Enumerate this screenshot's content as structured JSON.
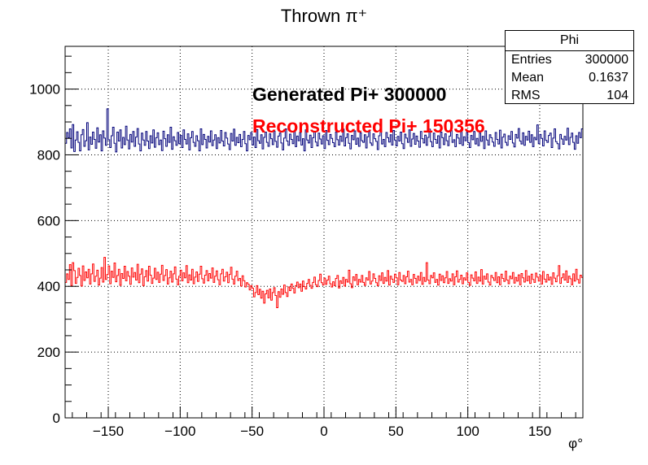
{
  "chart_data": {
    "type": "line",
    "title": "Thrown π⁺",
    "xlabel": "φ°",
    "ylabel": "",
    "xlim": [
      -180,
      180
    ],
    "ylim": [
      0,
      1130
    ],
    "grid": true,
    "x_ticks": [
      -150,
      -100,
      -50,
      0,
      50,
      100,
      150
    ],
    "y_ticks": [
      0,
      200,
      400,
      600,
      800,
      1000
    ],
    "x_tick_labels": [
      "−150",
      "−100",
      "−50",
      "0",
      "50",
      "100",
      "150"
    ],
    "y_tick_labels": [
      "0",
      "200",
      "400",
      "600",
      "800",
      "1000"
    ],
    "bins": 360,
    "series": [
      {
        "color": "#00007a",
        "mean": 833,
        "values_note_free": true,
        "values": [
          835,
          868,
          852,
          879,
          821,
          892,
          810,
          845,
          870,
          838,
          812,
          861,
          877,
          826,
          843,
          898,
          815,
          854,
          832,
          869,
          847,
          820,
          882,
          839,
          861,
          812,
          873,
          851,
          829,
          940,
          846,
          822,
          858,
          884,
          835,
          809,
          869,
          842,
          876,
          821,
          853,
          831,
          887,
          845,
          818,
          862,
          839,
          871,
          826,
          854,
          880,
          833,
          812,
          866,
          845,
          829,
          871,
          842,
          819,
          858,
          836,
          876,
          823,
          852,
          867,
          831,
          845,
          813,
          872,
          849,
          826,
          861,
          838,
          884,
          817,
          855,
          843,
          829,
          868,
          834,
          859,
          822,
          876,
          847,
          833,
          864,
          815,
          852,
          871,
          838,
          826,
          858,
          843,
          812,
          879,
          831,
          862,
          847,
          821,
          856,
          839,
          873,
          828,
          845,
          861,
          819,
          852,
          836,
          874,
          842,
          827,
          868,
          851,
          833,
          816,
          865,
          842,
          878,
          829,
          853,
          837,
          862,
          825,
          847,
          871,
          834,
          812,
          859,
          846,
          868,
          830,
          854,
          822,
          877,
          843,
          835,
          861,
          818,
          853,
          869,
          838,
          826,
          864,
          849,
          831,
          872,
          841,
          823,
          857,
          866,
          836,
          815,
          851,
          879,
          842,
          829,
          863,
          847,
          834,
          871,
          825,
          857,
          843,
          868,
          830,
          849,
          812,
          876,
          845,
          836,
          860,
          822,
          852,
          871,
          839,
          827,
          866,
          848,
          833,
          858,
          819,
          874,
          844,
          831,
          862,
          850,
          837,
          825,
          869,
          846,
          830,
          857,
          841,
          878,
          827,
          852,
          864,
          835,
          818,
          859,
          846,
          873,
          832,
          851,
          826,
          867,
          843,
          838,
          861,
          821,
          855,
          872,
          836,
          829,
          864,
          849,
          841,
          816,
          858,
          876,
          833,
          847,
          825,
          868,
          852,
          839,
          861,
          830,
          874,
          845,
          827,
          856,
          842,
          869,
          834,
          819,
          863,
          851,
          838,
          876,
          826,
          848,
          865,
          832,
          857,
          842,
          823,
          871,
          849,
          836,
          860,
          829,
          853,
          878,
          840,
          825,
          866,
          847,
          835,
          858,
          821,
          869,
          852,
          831,
          864,
          843,
          828,
          857,
          874,
          838,
          846,
          825,
          862,
          851,
          834,
          877,
          829,
          855,
          843,
          868,
          837,
          822,
          859,
          846,
          871,
          833,
          850,
          828,
          866,
          841,
          856,
          819,
          873,
          845,
          830,
          861,
          852,
          839,
          826,
          868,
          847,
          833,
          875,
          821,
          854,
          863,
          838,
          829,
          858,
          847,
          871,
          836,
          824,
          862,
          851,
          880,
          842,
          833,
          867,
          829,
          856,
          845,
          872,
          838,
          861,
          825,
          853,
          846,
          891,
          834,
          862,
          850,
          827,
          873,
          844,
          838,
          859,
          866,
          822,
          851,
          879,
          840,
          834,
          818,
          862,
          848,
          832,
          856,
          845,
          881,
          831,
          853,
          866,
          838,
          817,
          858
        ]
      },
      {
        "color": "#ff0000",
        "mean": 418,
        "values": [
          412,
          438,
          421,
          466,
          402,
          472,
          448,
          409,
          427,
          455,
          433,
          401,
          462,
          418,
          444,
          426,
          452,
          407,
          438,
          468,
          415,
          431,
          449,
          404,
          425,
          457,
          413,
          488,
          421,
          436,
          462,
          408,
          446,
          427,
          471,
          414,
          433,
          452,
          403,
          439,
          424,
          461,
          417,
          445,
          431,
          406,
          456,
          428,
          442,
          419,
          467,
          411,
          437,
          453,
          402,
          429,
          448,
          416,
          461,
          434,
          409,
          425,
          455,
          421,
          443,
          412,
          437,
          464,
          418,
          433,
          451,
          407,
          426,
          446,
          413,
          438,
          459,
          422,
          405,
          431,
          449,
          417,
          441,
          426,
          463,
          411,
          435,
          419,
          452,
          408,
          428,
          444,
          415,
          437,
          461,
          423,
          410,
          434,
          448,
          417,
          439,
          425,
          456,
          412,
          431,
          447,
          420,
          405,
          438,
          452,
          416,
          429,
          443,
          411,
          436,
          458,
          422,
          407,
          431,
          446,
          418,
          424,
          401,
          432,
          417,
          398,
          411,
          406,
          389,
          402,
          394,
          368,
          381,
          402,
          375,
          391,
          364,
          385,
          349,
          377,
          388,
          365,
          392,
          358,
          381,
          396,
          372,
          335,
          384,
          367,
          392,
          376,
          404,
          381,
          369,
          398,
          387,
          407,
          394,
          380,
          402,
          413,
          396,
          407,
          385,
          416,
          399,
          392,
          409,
          421,
          403,
          394,
          412,
          428,
          405,
          399,
          418,
          437,
          411,
          404,
          425,
          406,
          419,
          431,
          408,
          398,
          414,
          402,
          424,
          433,
          395,
          417,
          409,
          427,
          401,
          421,
          413,
          449,
          408,
          396,
          429,
          418,
          436,
          405,
          421,
          413,
          433,
          412,
          403,
          426,
          419,
          445,
          407,
          416,
          438,
          424,
          411,
          402,
          432,
          418,
          441,
          409,
          427,
          416,
          448,
          404,
          431,
          422,
          412,
          437,
          426,
          405,
          442,
          419,
          415,
          433,
          408,
          429,
          446,
          413,
          421,
          405,
          436,
          424,
          410,
          431,
          418,
          442,
          406,
          427,
          415,
          472,
          419,
          408,
          433,
          426,
          441,
          412,
          421,
          404,
          437,
          418,
          432,
          411,
          426,
          445,
          409,
          423,
          416,
          438,
          405,
          429,
          447,
          413,
          421,
          434,
          408,
          426,
          419,
          441,
          412,
          403,
          435,
          425,
          417,
          444,
          409,
          428,
          416,
          451,
          407,
          431,
          422,
          438,
          413,
          404,
          433,
          426,
          418,
          442,
          411,
          429,
          405,
          437,
          424,
          415,
          446,
          419,
          408,
          431,
          423,
          442,
          410,
          427,
          416,
          435,
          405,
          439,
          426,
          413,
          448,
          417,
          431,
          409,
          437,
          421,
          412,
          440,
          428,
          416,
          433,
          407,
          445,
          422,
          413,
          436,
          419,
          428,
          406,
          441,
          425,
          414,
          432,
          463,
          409,
          426,
          438,
          419,
          447,
          412,
          431,
          423,
          405,
          438,
          416,
          452,
          421,
          410,
          434,
          427,
          418,
          383,
          443,
          425,
          409,
          436,
          414,
          424,
          388,
          430
        ]
      }
    ],
    "annotations": [
      {
        "text": "Generated Pi+ 300000",
        "color": "#000000"
      },
      {
        "text": "Reconstructed Pi+ 150356",
        "color": "#ff0000"
      }
    ]
  },
  "stats_box": {
    "title": "Phi",
    "rows": [
      {
        "label": "Entries",
        "value": "300000"
      },
      {
        "label": "Mean",
        "value": "0.1637"
      },
      {
        "label": "RMS",
        "value": "104"
      }
    ]
  }
}
